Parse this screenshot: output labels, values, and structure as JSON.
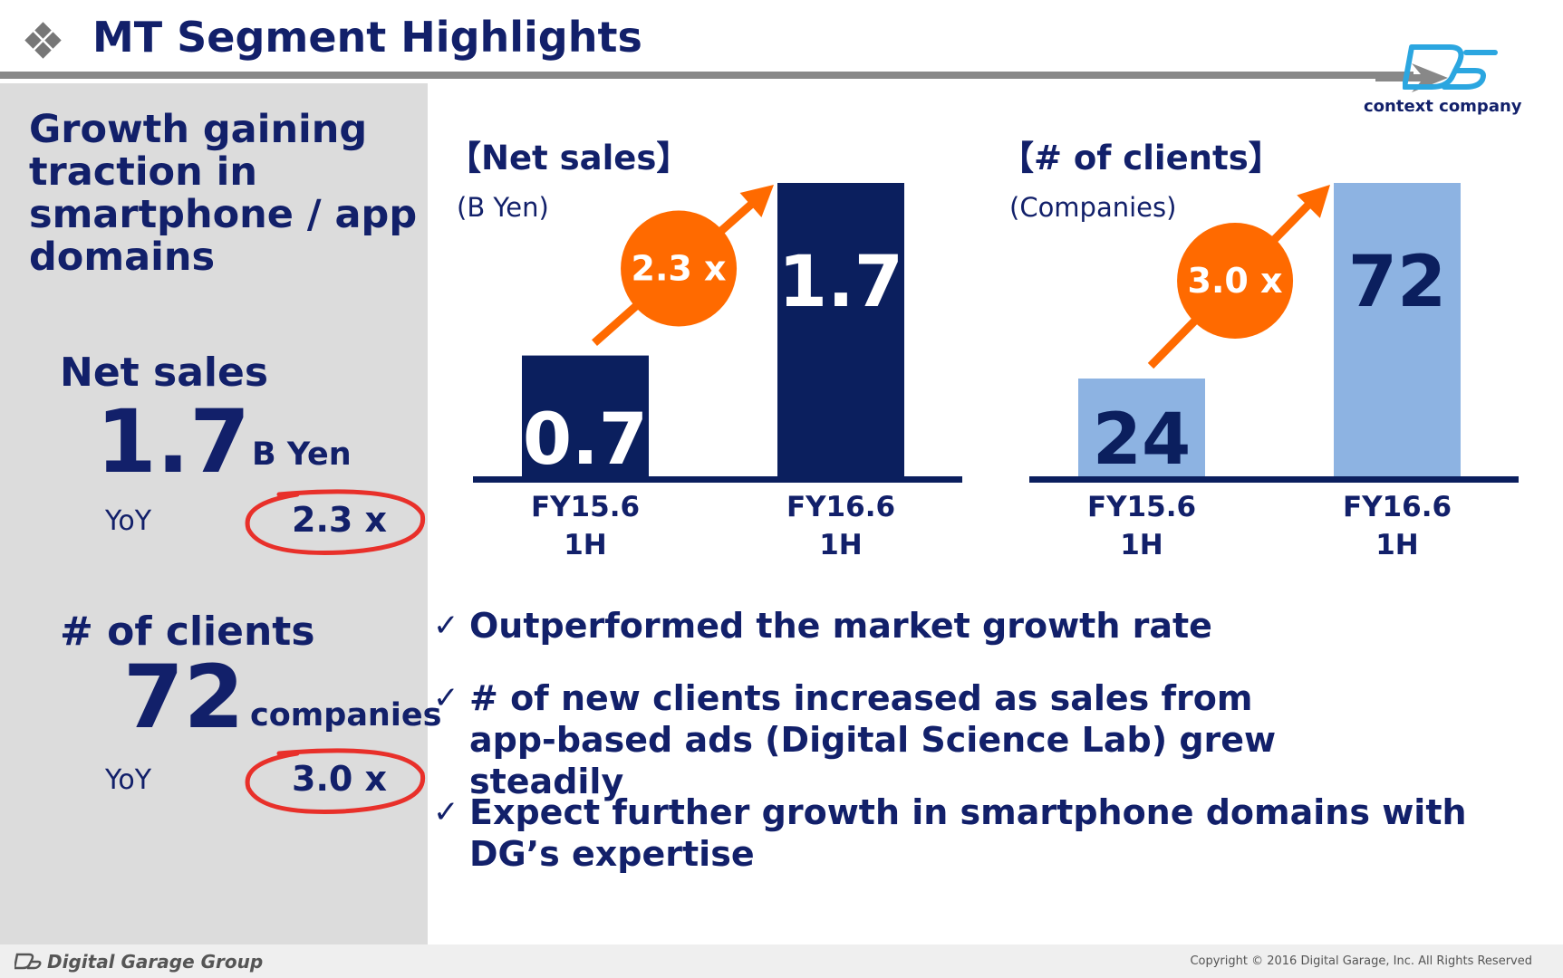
{
  "header": {
    "title": "MT Segment Highlights",
    "logo_tagline": "context company"
  },
  "sidebar": {
    "headline": "Growth gaining traction in smartphone / app domains",
    "net_sales": {
      "label": "Net sales",
      "value": "1.7",
      "unit": "B Yen",
      "yoy_label": "YoY",
      "yoy_value": "2.3 x"
    },
    "clients": {
      "label": "# of clients",
      "value": "72",
      "unit": "companies",
      "yoy_label": "YoY",
      "yoy_value": "3.0 x"
    }
  },
  "charts": [
    {
      "title": "【Net sales】",
      "unit": "(B Yen)"
    },
    {
      "title": "【# of clients】",
      "unit": "(Companies)"
    }
  ],
  "chart_data": [
    {
      "type": "bar",
      "title": "【Net sales】",
      "ylabel": "(B Yen)",
      "categories": [
        "FY15.6\n1H",
        "FY16.6\n1H"
      ],
      "values": [
        0.7,
        1.7
      ],
      "data_labels": [
        "0.7",
        "1.7"
      ],
      "growth_label": "2.3 x",
      "ylim": [
        0,
        1.7
      ]
    },
    {
      "type": "bar",
      "title": "【# of clients】",
      "ylabel": "(Companies)",
      "categories": [
        "FY15.6\n1H",
        "FY16.6\n1H"
      ],
      "values": [
        24,
        72
      ],
      "data_labels": [
        "24",
        "72"
      ],
      "growth_label": "3.0 x",
      "ylim": [
        0,
        72
      ]
    }
  ],
  "highlights": [
    "Outperformed the market growth rate",
    "# of new clients increased as sales from app-based ads (Digital Science Lab) grew steadily",
    "Expect further growth in smartphone domains with DG’s expertise"
  ],
  "check_glyph": "✓",
  "footer": {
    "group": "Digital Garage Group",
    "copyright": "Copyright © 2016 Digital Garage, Inc. All Rights Reserved"
  },
  "colors": {
    "navy": "#0b1f5e",
    "light_blue": "#8db3e2",
    "orange": "#ff6a00",
    "red_circle": "#e8302a"
  }
}
